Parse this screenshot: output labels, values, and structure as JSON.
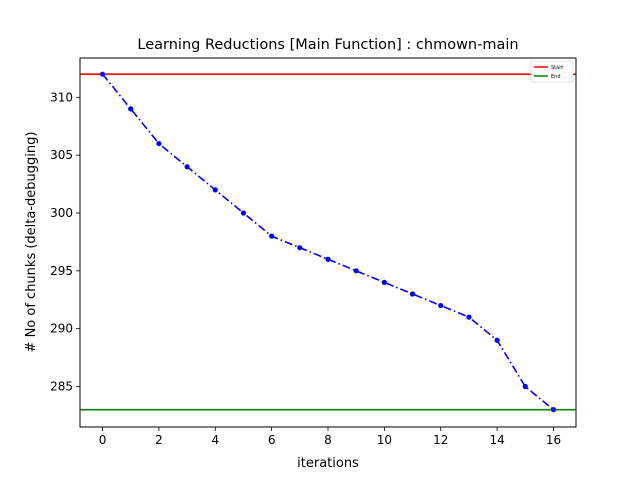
{
  "chart_data": {
    "type": "line",
    "title": "Learning Reductions [Main Function] : chmown-main",
    "xlabel": "iterations",
    "ylabel": "# No of chunks (delta-debugging)",
    "xlim": [
      -0.8,
      16.8
    ],
    "ylim": [
      281.5,
      313.4
    ],
    "xticks": [
      0,
      2,
      4,
      6,
      8,
      10,
      12,
      14,
      16
    ],
    "yticks": [
      285,
      290,
      295,
      300,
      305,
      310
    ],
    "grid": false,
    "legend_position": "top-right",
    "series": [
      {
        "name": "",
        "color": "#0000ff",
        "line_style": "dash-dot",
        "marker": "circle",
        "x": [
          0,
          1,
          2,
          3,
          4,
          5,
          6,
          7,
          8,
          9,
          10,
          11,
          12,
          13,
          14,
          15,
          16
        ],
        "y": [
          312,
          309,
          306,
          304,
          302,
          300,
          298,
          297,
          296,
          295,
          294,
          293,
          292,
          291,
          289,
          285,
          283
        ]
      }
    ],
    "reference_lines": [
      {
        "name": "Start",
        "color": "#ff0000",
        "y": 312
      },
      {
        "name": "End",
        "color": "#008000",
        "y": 283
      }
    ]
  }
}
